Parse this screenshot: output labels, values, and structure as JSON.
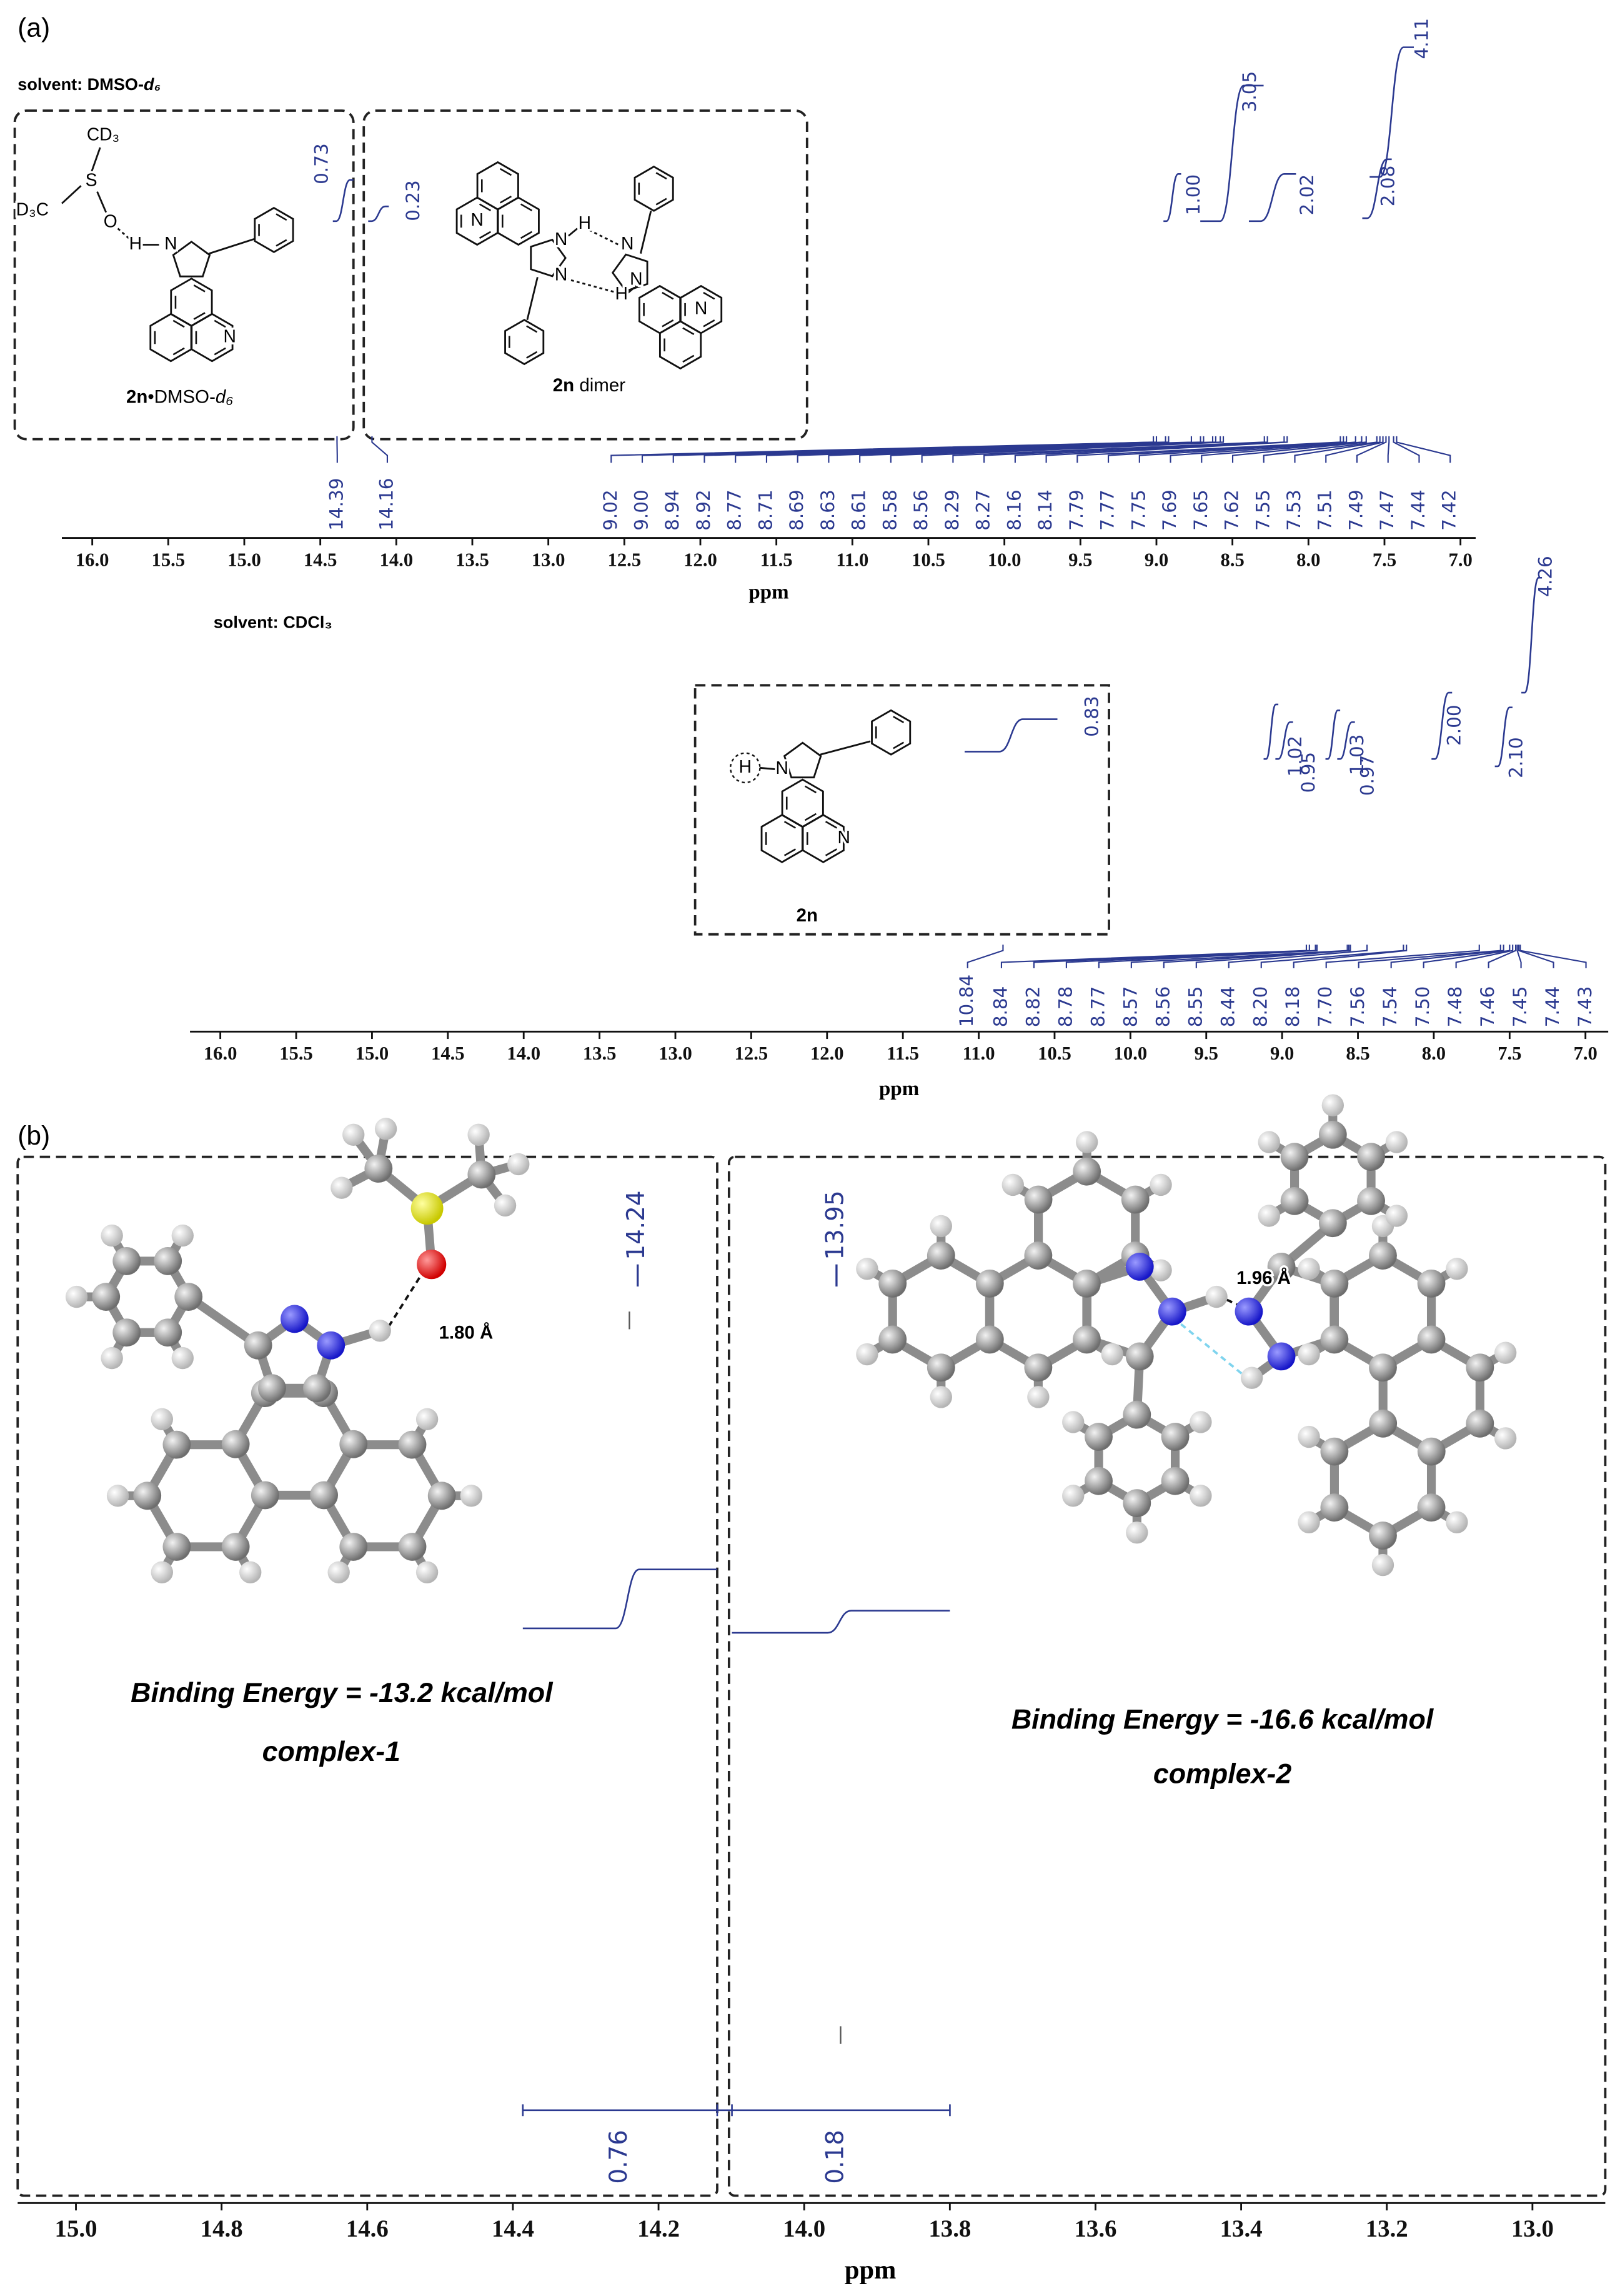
{
  "panel_a": {
    "label": "(a)",
    "top": {
      "solvent": {
        "text": "solvent: DMSO-",
        "italic": "d₆"
      },
      "axis_label": "ppm",
      "xlim": [
        16.2,
        6.9
      ],
      "xticks": [
        {
          "value": 16,
          "label": "16.0"
        },
        15.5,
        {
          "value": 15,
          "label": "15.0"
        },
        14.5,
        {
          "value": 14,
          "label": "14.0"
        },
        13.5,
        {
          "value": 13,
          "label": "13.0"
        },
        12.5,
        {
          "value": 12,
          "label": "12.0"
        },
        11.5,
        {
          "value": 11,
          "label": "11.0"
        },
        10.5,
        {
          "value": 10,
          "label": "10.0"
        },
        9.5,
        {
          "value": 9,
          "label": "9.0"
        },
        8.5,
        {
          "value": 8,
          "label": "8.0"
        },
        7.5,
        {
          "value": 7,
          "label": "7.0"
        }
      ],
      "peaks": [
        14.39,
        14.16,
        9.02,
        {
          "value": 9,
          "label": "9.00"
        },
        8.94,
        8.92,
        8.77,
        8.71,
        8.69,
        8.63,
        8.61,
        8.58,
        8.56,
        8.29,
        8.27,
        8.16,
        8.14,
        7.79,
        7.77,
        7.75,
        7.69,
        7.65,
        7.62,
        7.55,
        7.53,
        7.51,
        7.49,
        7.47,
        7.44,
        7.42
      ],
      "integrals": [
        0.73,
        0.23,
        {
          "value": 1,
          "label": "1.00"
        },
        3.05,
        2.02,
        2.08,
        4.11
      ]
    },
    "bottom": {
      "solvent": {
        "text": "solvent: CDCl₃"
      },
      "axis_label": "ppm",
      "xlim": [
        16.2,
        6.85
      ],
      "xticks": [
        {
          "value": 16,
          "label": "16.0"
        },
        15.5,
        {
          "value": 15,
          "label": "15.0"
        },
        14.5,
        {
          "value": 14,
          "label": "14.0"
        },
        13.5,
        {
          "value": 13,
          "label": "13.0"
        },
        12.5,
        {
          "value": 12,
          "label": "12.0"
        },
        11.5,
        {
          "value": 11,
          "label": "11.0"
        },
        10.5,
        {
          "value": 10,
          "label": "10.0"
        },
        9.5,
        {
          "value": 9,
          "label": "9.0"
        },
        8.5,
        {
          "value": 8,
          "label": "8.0"
        },
        7.5,
        {
          "value": 7,
          "label": "7.0"
        }
      ],
      "peaks": [
        10.84,
        8.84,
        8.82,
        8.78,
        8.77,
        8.57,
        8.56,
        8.55,
        8.44,
        {
          "value": 8.2,
          "label": "8.20"
        },
        8.18,
        {
          "value": 7.7,
          "label": "7.70"
        },
        7.56,
        7.54,
        {
          "value": 7.5,
          "label": "7.50"
        },
        7.48,
        7.46,
        7.45,
        7.44,
        7.43
      ],
      "integrals": [
        0.83,
        1.02,
        0.95,
        1.03,
        0.97,
        {
          "value": 2,
          "label": "2.00"
        },
        {
          "value": 2.1,
          "label": "2.10"
        },
        4.26
      ]
    },
    "insets": {
      "complex": {
        "atoms": [
          "CD₃",
          "D₃C",
          "S",
          "O",
          "H",
          "N",
          "N"
        ],
        "name": {
          "bold": "2n",
          "text": "•DMSO-",
          "italic": "d₆"
        }
      },
      "dimer": {
        "atoms": [
          "N",
          "H",
          "N",
          "H",
          "N",
          "N",
          "N",
          "N"
        ],
        "name": {
          "bold": "2n",
          "text": " dimer"
        }
      },
      "monomer": {
        "atoms": [
          "H",
          "N",
          "N"
        ],
        "name": "2n"
      }
    }
  },
  "panel_b": {
    "label": "(b)",
    "axis_label": "ppm",
    "xlim": [
      15.08,
      12.9
    ],
    "xticks": [
      {
        "value": 15,
        "label": "15.0"
      },
      14.8,
      14.6,
      14.4,
      14.2,
      {
        "value": 14,
        "label": "14.0"
      },
      13.8,
      13.6,
      13.4,
      13.2,
      {
        "value": 13,
        "label": "13.0"
      }
    ],
    "peaks": [
      14.24,
      13.95
    ],
    "integrals": [
      0.76,
      0.18
    ],
    "complex_1": {
      "distance": "1.80 Å",
      "energy": "Binding Energy = -13.2 kcal/mol",
      "name": "complex-1"
    },
    "complex_2": {
      "distance": "1.96 Å",
      "energy": "Binding Energy = -16.6 kcal/mol",
      "name": "complex-2"
    }
  }
}
